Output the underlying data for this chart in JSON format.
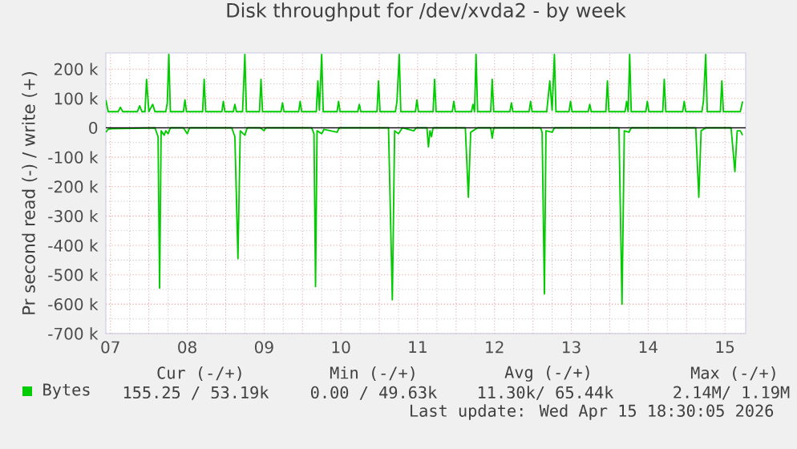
{
  "chart_data": {
    "type": "line",
    "title": "Disk throughput for /dev/xvda2 - by week",
    "ylabel": "Pr second read (-) / write (+)",
    "xlim": [
      7.44,
      15.77
    ],
    "xticks": [
      {
        "value": 7.5,
        "label": "07"
      },
      {
        "value": 8,
        "label": null
      },
      {
        "value": 8.5,
        "label": "08"
      },
      {
        "value": 9,
        "label": null
      },
      {
        "value": 9.5,
        "label": "09"
      },
      {
        "value": 10,
        "label": null
      },
      {
        "value": 10.5,
        "label": "10"
      },
      {
        "value": 11,
        "label": null
      },
      {
        "value": 11.5,
        "label": "11"
      },
      {
        "value": 12,
        "label": null
      },
      {
        "value": 12.5,
        "label": "12"
      },
      {
        "value": 13,
        "label": null
      },
      {
        "value": 13.5,
        "label": "13"
      },
      {
        "value": 14,
        "label": null
      },
      {
        "value": 14.5,
        "label": "14"
      },
      {
        "value": 15,
        "label": null
      },
      {
        "value": 15.5,
        "label": "15"
      }
    ],
    "ylim": [
      -700000,
      255000
    ],
    "yticks": [
      {
        "value": -700000,
        "label": "-700 k"
      },
      {
        "value": -600000,
        "label": "-600 k"
      },
      {
        "value": -500000,
        "label": "-500 k"
      },
      {
        "value": -400000,
        "label": "-400 k"
      },
      {
        "value": -300000,
        "label": "-300 k"
      },
      {
        "value": -200000,
        "label": "-200 k"
      },
      {
        "value": -100000,
        "label": "-100 k"
      },
      0,
      {
        "value": 100000,
        "label": "100 k"
      },
      {
        "value": 200000,
        "label": "200 k"
      }
    ],
    "grid": true,
    "legend": "bottom left",
    "ref_lines": [
      {
        "axis": "y",
        "value": 0,
        "color": "#000000"
      }
    ],
    "series": [
      {
        "name": "Bytes",
        "color": "#00cc00",
        "x": [
          7.44,
          7.47,
          7.6,
          7.63,
          7.66,
          7.85,
          7.88,
          7.91,
          7.95,
          7.97,
          8.0,
          8.05,
          8.08,
          8.22,
          8.24,
          8.26,
          8.28,
          8.45,
          8.47,
          8.49,
          8.7,
          8.72,
          8.74,
          8.95,
          8.97,
          8.99,
          9.1,
          9.12,
          9.14,
          9.22,
          9.25,
          9.27,
          9.44,
          9.46,
          9.48,
          9.72,
          9.74,
          9.76,
          9.95,
          9.97,
          9.99,
          10.18,
          10.2,
          10.22,
          10.25,
          10.27,
          10.45,
          10.47,
          10.49,
          10.72,
          10.74,
          10.76,
          10.97,
          10.99,
          11.01,
          11.21,
          11.23,
          11.26,
          11.28,
          11.47,
          11.49,
          11.51,
          11.7,
          11.72,
          11.74,
          11.95,
          11.97,
          11.99,
          12.2,
          12.22,
          12.24,
          12.26,
          12.28,
          12.45,
          12.47,
          12.49,
          12.7,
          12.72,
          12.74,
          12.95,
          12.97,
          12.99,
          13.18,
          13.22,
          13.25,
          13.28,
          13.3,
          13.47,
          13.49,
          13.51,
          13.72,
          13.74,
          13.76,
          13.95,
          13.97,
          13.99,
          14.2,
          14.22,
          14.24,
          14.26,
          14.28,
          14.47,
          14.49,
          14.51,
          14.69,
          14.71,
          14.73,
          14.95,
          14.97,
          14.99,
          15.2,
          15.22,
          15.25,
          15.27,
          15.44,
          15.46,
          15.48,
          15.7,
          15.73
        ],
        "values": [
          95000,
          55000,
          55000,
          70000,
          55000,
          55000,
          75000,
          55000,
          55000,
          165000,
          55000,
          80000,
          55000,
          55000,
          85000,
          250000,
          55000,
          55000,
          95000,
          55000,
          55000,
          165000,
          55000,
          55000,
          90000,
          55000,
          55000,
          80000,
          55000,
          55000,
          250000,
          55000,
          55000,
          165000,
          55000,
          55000,
          85000,
          55000,
          55000,
          90000,
          55000,
          55000,
          160000,
          60000,
          250000,
          55000,
          55000,
          90000,
          55000,
          55000,
          80000,
          55000,
          55000,
          160000,
          55000,
          55000,
          90000,
          250000,
          55000,
          55000,
          95000,
          55000,
          55000,
          165000,
          55000,
          55000,
          90000,
          55000,
          55000,
          80000,
          55000,
          250000,
          55000,
          55000,
          165000,
          55000,
          55000,
          85000,
          55000,
          55000,
          90000,
          55000,
          55000,
          160000,
          60000,
          250000,
          55000,
          55000,
          90000,
          55000,
          55000,
          80000,
          55000,
          55000,
          160000,
          55000,
          55000,
          90000,
          55000,
          250000,
          55000,
          55000,
          90000,
          55000,
          55000,
          165000,
          55000,
          55000,
          90000,
          55000,
          55000,
          90000,
          250000,
          55000,
          55000,
          160000,
          55000,
          55000,
          90000
        ]
      },
      {
        "color": "#00cc00",
        "x": [
          7.44,
          7.47,
          7.5,
          8.08,
          8.12,
          8.14,
          8.16,
          8.2,
          8.22,
          8.25,
          8.28,
          8.45,
          8.5,
          8.53,
          9.08,
          9.12,
          9.16,
          9.19,
          9.25,
          9.28,
          9.45,
          9.5,
          9.52,
          10.12,
          10.15,
          10.17,
          10.19,
          10.25,
          10.28,
          10.45,
          10.48,
          11.12,
          11.17,
          11.2,
          11.25,
          11.3,
          11.45,
          11.48,
          11.62,
          11.64,
          11.66,
          11.68,
          11.7,
          12.12,
          12.16,
          12.19,
          12.22,
          12.28,
          12.45,
          12.47,
          12.49,
          13.1,
          13.12,
          13.15,
          13.17,
          13.25,
          13.28,
          14.12,
          14.16,
          14.19,
          14.25,
          14.28,
          15.12,
          15.16,
          15.19,
          15.25,
          15.58,
          15.63,
          15.66,
          15.7,
          15.73
        ],
        "values": [
          -15000,
          -5000,
          -3000,
          0,
          -30000,
          -545000,
          -10000,
          -25000,
          -10000,
          -20000,
          0,
          0,
          -20000,
          0,
          0,
          -30000,
          -445000,
          -10000,
          -25000,
          0,
          0,
          -10000,
          0,
          0,
          -20000,
          -540000,
          -10000,
          -20000,
          -5000,
          -15000,
          0,
          0,
          -585000,
          -10000,
          -20000,
          0,
          -10000,
          0,
          0,
          -65000,
          -10000,
          -30000,
          0,
          0,
          -236000,
          -15000,
          -10000,
          0,
          0,
          -35000,
          0,
          0,
          -15000,
          -565000,
          -10000,
          -15000,
          0,
          0,
          -600000,
          -10000,
          -15000,
          0,
          0,
          -236000,
          -10000,
          0,
          0,
          -149000,
          -10000,
          -10000,
          -25000
        ]
      }
    ],
    "annotations": [
      "Cur (-/+)",
      "Min (-/+)",
      "Avg (-/+)",
      "Max (-/+)",
      "155.25 / 53.19k",
      "0.00 / 49.63k",
      "11.30k/ 65.44k",
      "2.14M/ 1.19M",
      "Last update: Wed Apr 15 18:30:05 2026"
    ]
  }
}
